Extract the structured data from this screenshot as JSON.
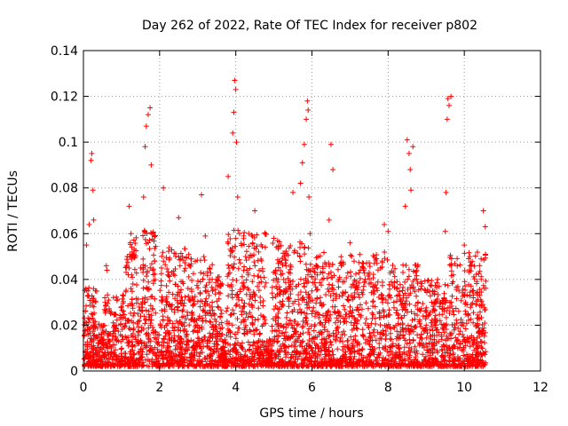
{
  "chart_data": {
    "type": "scatter",
    "title": "Day 262 of 2022, Rate Of TEC Index for receiver p802",
    "xlabel": "GPS time / hours",
    "ylabel": "ROTI / TECUs",
    "xlim": [
      0,
      12
    ],
    "ylim": [
      0,
      0.14
    ],
    "xticks": [
      "0",
      "2",
      "4",
      "6",
      "8",
      "10",
      "12"
    ],
    "yticks": [
      "0",
      "0.02",
      "0.04",
      "0.06",
      "0.08",
      "0.1",
      "0.12",
      "0.14"
    ],
    "grid": true,
    "marker": "+",
    "color": "#ff0000",
    "series": [
      {
        "x": [
          0.05,
          0.08,
          0.12,
          0.15,
          0.2,
          0.22,
          0.25,
          0.27,
          0.3,
          0.5,
          0.6,
          0.62,
          0.85,
          1.0,
          1.15,
          1.2,
          1.25,
          1.3,
          1.5,
          1.58,
          1.62,
          1.65,
          1.7,
          1.75,
          1.78,
          1.8,
          2.05,
          2.1,
          2.2,
          2.5,
          2.6,
          3.0,
          3.1,
          3.2,
          3.5,
          3.8,
          3.9,
          3.92,
          3.95,
          3.97,
          4.0,
          4.02,
          4.05,
          4.1,
          4.5,
          4.6,
          5.0,
          5.2,
          5.5,
          5.7,
          5.75,
          5.8,
          5.85,
          5.88,
          5.9,
          5.92,
          5.95,
          6.45,
          6.5,
          6.55,
          7.0,
          7.5,
          7.8,
          7.9,
          8.0,
          8.45,
          8.5,
          8.55,
          8.58,
          8.6,
          8.65,
          9.0,
          9.3,
          9.5,
          9.52,
          9.55,
          9.57,
          9.6,
          9.65,
          10.0,
          10.4,
          10.5,
          10.55
        ],
        "y": [
          0.008,
          0.055,
          0.035,
          0.064,
          0.092,
          0.095,
          0.079,
          0.066,
          0.01,
          0.012,
          0.046,
          0.044,
          0.015,
          0.028,
          0.05,
          0.072,
          0.06,
          0.038,
          0.045,
          0.076,
          0.098,
          0.107,
          0.112,
          0.115,
          0.09,
          0.06,
          0.045,
          0.08,
          0.03,
          0.067,
          0.05,
          0.02,
          0.077,
          0.059,
          0.015,
          0.085,
          0.052,
          0.104,
          0.113,
          0.127,
          0.123,
          0.1,
          0.076,
          0.06,
          0.07,
          0.052,
          0.058,
          0.028,
          0.078,
          0.082,
          0.091,
          0.099,
          0.11,
          0.118,
          0.114,
          0.076,
          0.06,
          0.066,
          0.099,
          0.088,
          0.056,
          0.043,
          0.045,
          0.064,
          0.061,
          0.072,
          0.101,
          0.095,
          0.088,
          0.079,
          0.098,
          0.02,
          0.04,
          0.061,
          0.078,
          0.11,
          0.119,
          0.116,
          0.12,
          0.055,
          0.046,
          0.07,
          0.063
        ]
      }
    ]
  }
}
